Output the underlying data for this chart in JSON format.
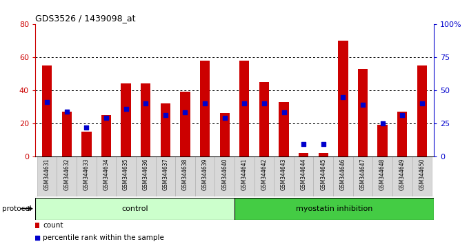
{
  "title": "GDS3526 / 1439098_at",
  "samples": [
    "GSM344631",
    "GSM344632",
    "GSM344633",
    "GSM344634",
    "GSM344635",
    "GSM344636",
    "GSM344637",
    "GSM344638",
    "GSM344639",
    "GSM344640",
    "GSM344641",
    "GSM344642",
    "GSM344643",
    "GSM344644",
    "GSM344645",
    "GSM344646",
    "GSM344647",
    "GSM344648",
    "GSM344649",
    "GSM344650"
  ],
  "counts": [
    55,
    27,
    15,
    25,
    44,
    44,
    32,
    39,
    58,
    26,
    58,
    45,
    33,
    2,
    2,
    70,
    53,
    19,
    27,
    55
  ],
  "percentiles": [
    41,
    34,
    22,
    29,
    36,
    40,
    31,
    33,
    40,
    29,
    40,
    40,
    33,
    9,
    9,
    45,
    39,
    25,
    31,
    40
  ],
  "control_count": 10,
  "bar_color": "#cc0000",
  "dot_color": "#0000cc",
  "control_bg": "#ccffcc",
  "myostatin_bg": "#44cc44",
  "ylim_left": [
    0,
    80
  ],
  "ylim_right": [
    0,
    100
  ],
  "yticks_left": [
    0,
    20,
    40,
    60,
    80
  ],
  "yticks_right": [
    0,
    25,
    50,
    75,
    100
  ],
  "ytick_labels_right": [
    "0",
    "25",
    "50",
    "75",
    "100%"
  ],
  "protocol_label": "protocol",
  "control_label": "control",
  "myostatin_label": "myostatin inhibition",
  "legend_count": "count",
  "legend_percentile": "percentile rank within the sample"
}
